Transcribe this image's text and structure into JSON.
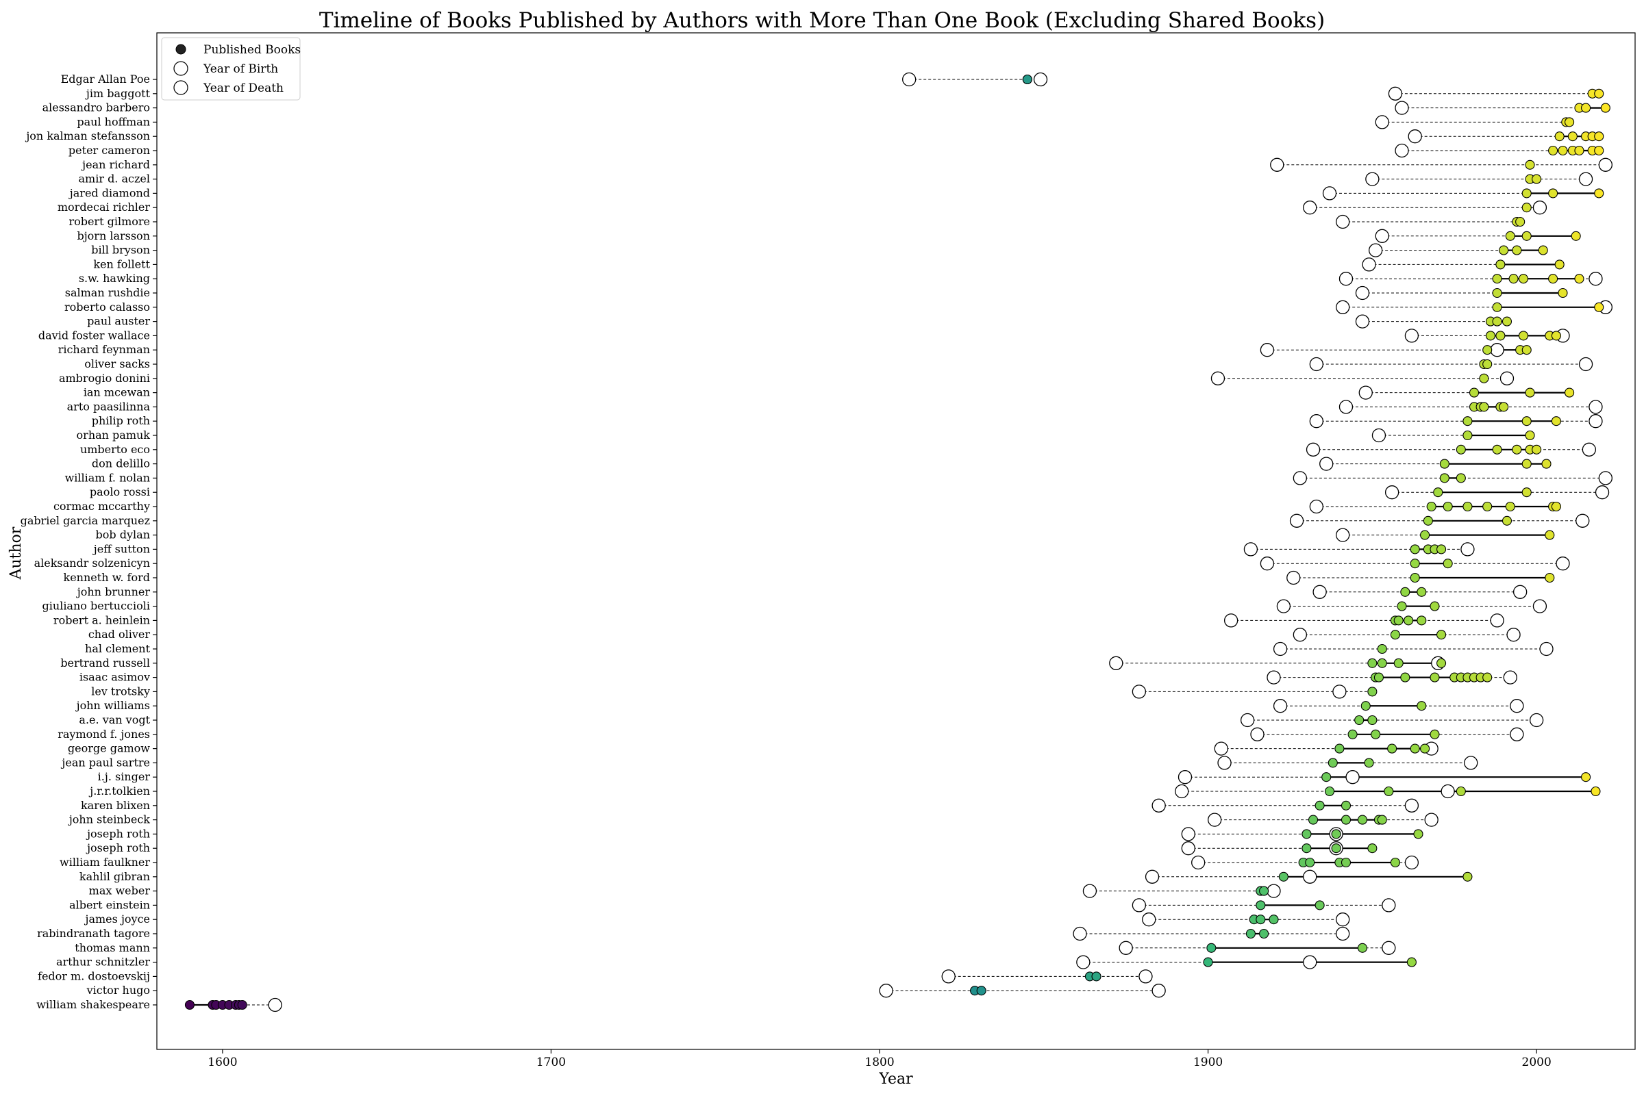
{
  "chart_data": {
    "type": "scatter",
    "title": "Timeline of Books Published by Authors with More Than One Book (Excluding Shared Books)",
    "xlabel": "Year",
    "ylabel": "Author",
    "xlim": [
      1580,
      2030
    ],
    "xticks": [
      1600,
      1700,
      1800,
      1900,
      2000
    ],
    "grid": false,
    "legend": {
      "placement": "top-left",
      "entries": [
        "Published Books",
        "Year of Birth",
        "Year of Death"
      ]
    },
    "colormap": [
      "#440154",
      "#31688e",
      "#21918c",
      "#35b779",
      "#90d743",
      "#fde725"
    ],
    "authors": [
      {
        "name": "Edgar Allan Poe",
        "birth": 1809,
        "death": 1849,
        "books": [
          1845,
          1845
        ]
      },
      {
        "name": "jim baggott",
        "birth": 1957,
        "death": null,
        "books": [
          2017,
          2019
        ]
      },
      {
        "name": "alessandro barbero",
        "birth": 1959,
        "death": null,
        "books": [
          2013,
          2015,
          2021
        ]
      },
      {
        "name": "paul hoffman",
        "birth": 1953,
        "death": null,
        "books": [
          2009,
          2010
        ]
      },
      {
        "name": "jon kalman stefansson",
        "birth": 1963,
        "death": null,
        "books": [
          2007,
          2011,
          2015,
          2017,
          2019
        ]
      },
      {
        "name": "peter cameron",
        "birth": 1959,
        "death": null,
        "books": [
          2005,
          2008,
          2011,
          2013,
          2017,
          2019
        ]
      },
      {
        "name": "jean richard",
        "birth": 1921,
        "death": 2021,
        "books": [
          1998
        ]
      },
      {
        "name": "amir d. aczel",
        "birth": 1950,
        "death": 2015,
        "books": [
          1998,
          2000
        ]
      },
      {
        "name": "jared diamond",
        "birth": 1937,
        "death": null,
        "books": [
          1997,
          2005,
          2019
        ]
      },
      {
        "name": "mordecai richler",
        "birth": 1931,
        "death": 2001,
        "books": [
          1997
        ]
      },
      {
        "name": "robert gilmore",
        "birth": 1941,
        "death": null,
        "books": [
          1994,
          1995
        ]
      },
      {
        "name": "bjorn larsson",
        "birth": 1953,
        "death": null,
        "books": [
          1992,
          1997,
          2012
        ]
      },
      {
        "name": "bill bryson",
        "birth": 1951,
        "death": null,
        "books": [
          1990,
          1994,
          2002
        ]
      },
      {
        "name": "ken follett",
        "birth": 1949,
        "death": null,
        "books": [
          1989,
          2007
        ]
      },
      {
        "name": "s.w. hawking",
        "birth": 1942,
        "death": 2018,
        "books": [
          1988,
          1993,
          1996,
          2005,
          2013
        ]
      },
      {
        "name": "salman rushdie",
        "birth": 1947,
        "death": null,
        "books": [
          1988,
          2008
        ]
      },
      {
        "name": "roberto calasso",
        "birth": 1941,
        "death": 2021,
        "books": [
          1988,
          2019
        ]
      },
      {
        "name": "paul auster",
        "birth": 1947,
        "death": null,
        "books": [
          1986,
          1988,
          1991
        ]
      },
      {
        "name": "david foster wallace",
        "birth": 1962,
        "death": 2008,
        "books": [
          1986,
          1989,
          1996,
          2004,
          2006
        ]
      },
      {
        "name": "richard feynman",
        "birth": 1918,
        "death": 1988,
        "books": [
          1985,
          1995,
          1997
        ]
      },
      {
        "name": "oliver sacks",
        "birth": 1933,
        "death": 2015,
        "books": [
          1984,
          1985
        ]
      },
      {
        "name": "ambrogio donini",
        "birth": 1903,
        "death": 1991,
        "books": [
          1984
        ]
      },
      {
        "name": "ian mcewan",
        "birth": 1948,
        "death": null,
        "books": [
          1981,
          1998,
          2010
        ]
      },
      {
        "name": "arto paasilinna",
        "birth": 1942,
        "death": 2018,
        "books": [
          1981,
          1983,
          1984,
          1989,
          1990
        ]
      },
      {
        "name": "philip roth",
        "birth": 1933,
        "death": 2018,
        "books": [
          1979,
          1997,
          2006
        ]
      },
      {
        "name": "orhan pamuk",
        "birth": 1952,
        "death": null,
        "books": [
          1979,
          1998
        ]
      },
      {
        "name": "umberto eco",
        "birth": 1932,
        "death": 2016,
        "books": [
          1977,
          1988,
          1994,
          1998,
          2000
        ]
      },
      {
        "name": "don delillo",
        "birth": 1936,
        "death": null,
        "books": [
          1972,
          1997,
          2003
        ]
      },
      {
        "name": "william f. nolan",
        "birth": 1928,
        "death": 2021,
        "books": [
          1972,
          1977
        ]
      },
      {
        "name": "paolo rossi",
        "birth": 1956,
        "death": 2020,
        "books": [
          1970,
          1997
        ]
      },
      {
        "name": "cormac mccarthy",
        "birth": 1933,
        "death": null,
        "books": [
          1968,
          1973,
          1979,
          1985,
          1992,
          2005,
          2006
        ]
      },
      {
        "name": "gabriel garcia marquez",
        "birth": 1927,
        "death": 2014,
        "books": [
          1967,
          1991
        ]
      },
      {
        "name": "bob dylan",
        "birth": 1941,
        "death": null,
        "books": [
          1966,
          2004
        ]
      },
      {
        "name": "jeff sutton",
        "birth": 1913,
        "death": 1979,
        "books": [
          1963,
          1967,
          1969,
          1971
        ]
      },
      {
        "name": "aleksandr solzenicyn",
        "birth": 1918,
        "death": 2008,
        "books": [
          1963,
          1973
        ]
      },
      {
        "name": "kenneth w. ford",
        "birth": 1926,
        "death": null,
        "books": [
          1963,
          2004
        ]
      },
      {
        "name": "john brunner",
        "birth": 1934,
        "death": 1995,
        "books": [
          1960,
          1965
        ]
      },
      {
        "name": "giuliano bertuccioli",
        "birth": 1923,
        "death": 2001,
        "books": [
          1959,
          1969
        ]
      },
      {
        "name": "robert a. heinlein",
        "birth": 1907,
        "death": 1988,
        "books": [
          1957,
          1958,
          1961,
          1965
        ]
      },
      {
        "name": "chad oliver",
        "birth": 1928,
        "death": 1993,
        "books": [
          1957,
          1971
        ]
      },
      {
        "name": "hal clement",
        "birth": 1922,
        "death": 2003,
        "books": [
          1953
        ]
      },
      {
        "name": "bertrand russell",
        "birth": 1872,
        "death": 1970,
        "books": [
          1950,
          1953,
          1958,
          1971
        ]
      },
      {
        "name": "isaac asimov",
        "birth": 1920,
        "death": 1992,
        "books": [
          1951,
          1952,
          1960,
          1969,
          1975,
          1977,
          1979,
          1981,
          1983,
          1985
        ]
      },
      {
        "name": "lev trotsky",
        "birth": 1879,
        "death": 1940,
        "books": [
          1950
        ]
      },
      {
        "name": "john williams",
        "birth": 1922,
        "death": 1994,
        "books": [
          1948,
          1965
        ]
      },
      {
        "name": "a.e. van vogt",
        "birth": 1912,
        "death": 2000,
        "books": [
          1946,
          1950
        ]
      },
      {
        "name": "raymond f. jones",
        "birth": 1915,
        "death": 1994,
        "books": [
          1944,
          1951,
          1969
        ]
      },
      {
        "name": "george gamow",
        "birth": 1904,
        "death": 1968,
        "books": [
          1940,
          1956,
          1963,
          1966
        ]
      },
      {
        "name": "jean paul sartre",
        "birth": 1905,
        "death": 1980,
        "books": [
          1938,
          1949
        ]
      },
      {
        "name": "i.j. singer",
        "birth": 1893,
        "death": 1944,
        "books": [
          1936,
          2015
        ]
      },
      {
        "name": "j.r.r.tolkien",
        "birth": 1892,
        "death": 1973,
        "books": [
          1937,
          1955,
          1977,
          2018
        ]
      },
      {
        "name": "karen blixen",
        "birth": 1885,
        "death": 1962,
        "books": [
          1934,
          1942
        ]
      },
      {
        "name": "john steinbeck",
        "birth": 1902,
        "death": 1968,
        "books": [
          1932,
          1942,
          1947,
          1952,
          1953
        ]
      },
      {
        "name": "joseph roth",
        "birth": 1894,
        "death": 1939,
        "books": [
          1930,
          1939,
          1964
        ]
      },
      {
        "name": "joseph roth",
        "birth": 1894,
        "death": 1939,
        "books": [
          1930,
          1939,
          1950
        ]
      },
      {
        "name": "william faulkner",
        "birth": 1897,
        "death": 1962,
        "books": [
          1929,
          1931,
          1940,
          1942,
          1957
        ]
      },
      {
        "name": "kahlil gibran",
        "birth": 1883,
        "death": 1931,
        "books": [
          1923,
          1979
        ]
      },
      {
        "name": "max weber",
        "birth": 1864,
        "death": 1920,
        "books": [
          1916,
          1917
        ]
      },
      {
        "name": "albert einstein",
        "birth": 1879,
        "death": 1955,
        "books": [
          1916,
          1934
        ]
      },
      {
        "name": "james joyce",
        "birth": 1882,
        "death": 1941,
        "books": [
          1914,
          1916,
          1920
        ]
      },
      {
        "name": "rabindranath tagore",
        "birth": 1861,
        "death": 1941,
        "books": [
          1913,
          1917
        ]
      },
      {
        "name": "thomas mann",
        "birth": 1875,
        "death": 1955,
        "books": [
          1901,
          1947
        ]
      },
      {
        "name": "arthur schnitzler",
        "birth": 1862,
        "death": 1931,
        "books": [
          1900,
          1962
        ]
      },
      {
        "name": "fedor m. dostoevskij",
        "birth": 1821,
        "death": 1881,
        "books": [
          1864,
          1866
        ]
      },
      {
        "name": "victor hugo",
        "birth": 1802,
        "death": 1885,
        "books": [
          1829,
          1831
        ]
      },
      {
        "name": "william shakespeare",
        "birth": null,
        "death": 1616,
        "books": [
          1590,
          1597,
          1598,
          1600,
          1602,
          1604,
          1605,
          1606
        ]
      }
    ]
  }
}
